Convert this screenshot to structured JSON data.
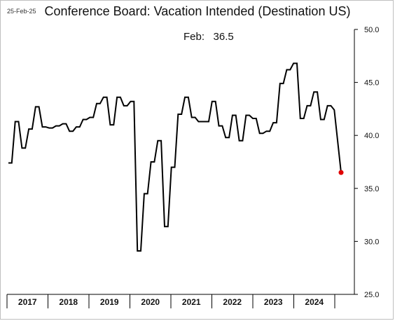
{
  "date_stamp": "25-Feb-25",
  "title": "Conference Board: Vacation Intended (Destination US)",
  "callout": {
    "label": "Feb:",
    "value": "36.5"
  },
  "colors": {
    "line": "#000000",
    "last_point": "#e00000",
    "axis": "#000000"
  },
  "chart_data": {
    "type": "line",
    "title": "Conference Board: Vacation Intended (Destination US)",
    "xlabel": "",
    "ylabel": "",
    "ylim": [
      25.0,
      50.0
    ],
    "yticks": [
      "25.0",
      "30.0",
      "35.0",
      "40.0",
      "45.0",
      "50.0"
    ],
    "xticks": [
      "2017",
      "2018",
      "2019",
      "2020",
      "2021",
      "2022",
      "2023",
      "2024"
    ],
    "y_axis_side": "right",
    "grid": false,
    "legend": "none",
    "last_point_marker": true,
    "series": [
      {
        "x_start": "2017-01",
        "frequency": "bimonthly-step",
        "values": [
          37.4,
          41.3,
          38.8,
          40.6,
          42.7,
          40.8,
          40.7,
          40.9,
          41.1,
          40.4,
          40.8,
          41.5,
          41.7,
          43.0,
          43.6,
          41.0,
          43.6,
          42.8,
          43.2,
          29.1,
          34.5,
          37.5,
          39.5,
          31.4,
          37.0,
          42.0,
          43.6,
          41.7,
          41.3,
          41.3,
          43.2,
          40.9,
          39.8,
          41.9,
          39.5,
          41.9,
          41.6,
          40.2,
          40.4,
          41.2,
          44.9,
          46.2,
          46.8,
          41.6,
          42.8,
          44.1,
          41.5,
          42.8,
          42.4,
          36.5
        ]
      }
    ]
  }
}
